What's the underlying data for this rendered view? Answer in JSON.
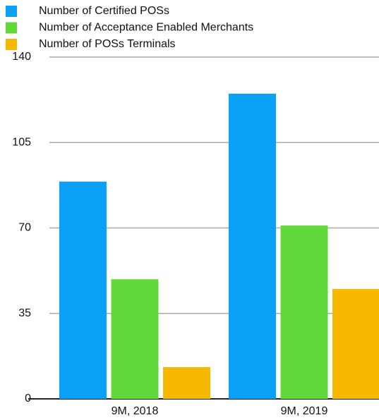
{
  "chart_data": {
    "type": "bar",
    "categories": [
      "9M, 2018",
      "9M, 2019"
    ],
    "series": [
      {
        "name": "Number of Certified POSs",
        "color": "#0ba1f6",
        "values": [
          89,
          125
        ]
      },
      {
        "name": "Number of Acceptance Enabled Merchants",
        "color": "#62d93a",
        "values": [
          49,
          71
        ]
      },
      {
        "name": "Number of POSs Terminals",
        "color": "#f8b800",
        "values": [
          13,
          45
        ]
      }
    ],
    "ylim": [
      0,
      140
    ],
    "yticks": [
      0,
      35,
      70,
      105,
      140
    ],
    "grid": true,
    "legend": "top"
  }
}
